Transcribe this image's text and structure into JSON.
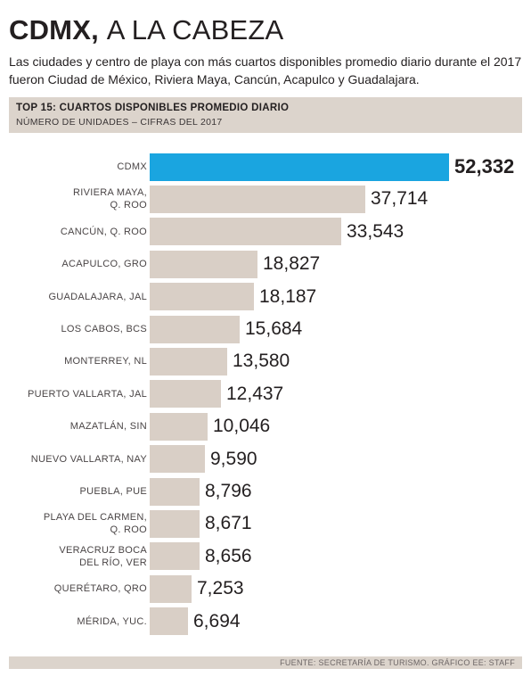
{
  "header": {
    "title_strong": "CDMX,",
    "title_light": "A LA CABEZA",
    "dek": "Las ciudades y centro de playa con más cuartos disponibles promedio diario durante el 2017 fueron Ciudad de México, Riviera Maya, Cancún, Acapulco y Guadalajara."
  },
  "subheader": {
    "title": "TOP 15: CUARTOS DISPONIBLES PROMEDIO DIARIO",
    "subtitle": "NÚMERO DE UNIDADES – CIFRAS DEL 2017"
  },
  "footer": {
    "source": "FUENTE: SECRETARÍA DE TURISMO.  GRÁFICO EE: STAFF"
  },
  "colors": {
    "highlight_bar": "#1aa5e0",
    "bar": "#d9cfc6",
    "panel": "#dcd4cc"
  },
  "chart_data": {
    "type": "bar",
    "orientation": "horizontal",
    "title": "TOP 15: CUARTOS DISPONIBLES PROMEDIO DIARIO",
    "subtitle": "NÚMERO DE UNIDADES – CIFRAS DEL 2017",
    "xlabel": "",
    "ylabel": "",
    "categories": [
      [
        "CDMX"
      ],
      [
        "RIVIERA MAYA,",
        "Q. ROO"
      ],
      [
        "CANCÚN, Q. ROO"
      ],
      [
        "ACAPULCO, GRO"
      ],
      [
        "GUADALAJARA, JAL"
      ],
      [
        "LOS CABOS, BCS"
      ],
      [
        "MONTERREY, NL"
      ],
      [
        "PUERTO VALLARTA, JAL"
      ],
      [
        "MAZATLÁN, SIN"
      ],
      [
        "NUEVO VALLARTA, NAY"
      ],
      [
        "PUEBLA, PUE"
      ],
      [
        "PLAYA DEL CARMEN,",
        "Q. ROO"
      ],
      [
        "VERACRUZ BOCA",
        "DEL RÍO, VER"
      ],
      [
        "QUERÉTARO, QRO"
      ],
      [
        "MÉRIDA, YUC."
      ]
    ],
    "values": [
      52332,
      37714,
      33543,
      18827,
      18187,
      15684,
      13580,
      12437,
      10046,
      9590,
      8796,
      8671,
      8656,
      7253,
      6694
    ],
    "value_labels": [
      "52,332",
      "37,714",
      "33,543",
      "18,827",
      "18,187",
      "15,684",
      "13,580",
      "12,437",
      "10,046",
      "9,590",
      "8,796",
      "8,671",
      "8,656",
      "7,253",
      "6,694"
    ],
    "highlight_index": 0,
    "xlim": [
      0,
      52332
    ],
    "grid": false,
    "legend": "none"
  }
}
